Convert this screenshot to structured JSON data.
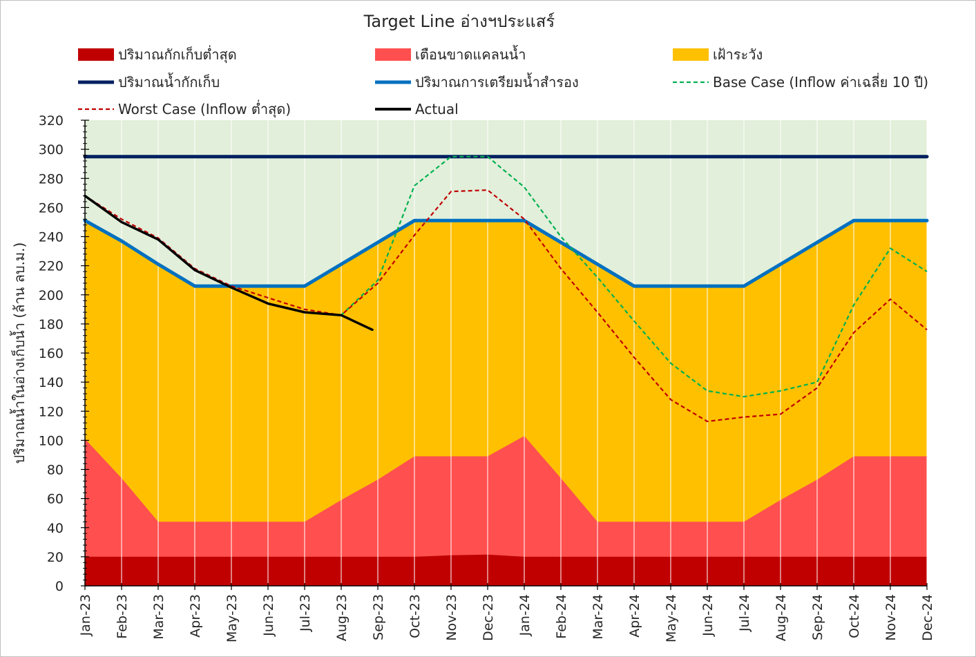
{
  "chart_data": {
    "type": "area",
    "title": "Target Line อ่างฯประแสร์",
    "ylabel": "ปริมาณน้ำในอ่างเก็บน้ำ (ล้าน ลบ.ม.)",
    "xlabel": "",
    "ylim": [
      0,
      320
    ],
    "y_ticks": [
      0,
      20,
      40,
      60,
      80,
      100,
      120,
      140,
      160,
      180,
      200,
      220,
      240,
      260,
      280,
      300,
      320
    ],
    "categories": [
      "Jan-23",
      "Feb-23",
      "Mar-23",
      "Apr-23",
      "May-23",
      "Jun-23",
      "Jul-23",
      "Aug-23",
      "Sep-23",
      "Oct-23",
      "Nov-23",
      "Dec-23",
      "Jan-24",
      "Feb-24",
      "Mar-24",
      "Apr-24",
      "May-24",
      "Jun-24",
      "Jul-24",
      "Aug-24",
      "Sep-24",
      "Oct-24",
      "Nov-24",
      "Dec-24"
    ],
    "grid": true,
    "legend_position": "top",
    "background_zone_color": "#e2efda",
    "series": [
      {
        "name": "ปริมาณกักเก็บต่ำสุด",
        "kind": "area",
        "color": "#c00000",
        "values": [
          20,
          20,
          20,
          20,
          20,
          20,
          20,
          20,
          20,
          20,
          21,
          21.5,
          20,
          20,
          20,
          20,
          20,
          20,
          20,
          20,
          20,
          20,
          20,
          20
        ]
      },
      {
        "name": "เตือนขาดแคลนน้ำ",
        "kind": "area",
        "color": "#ff4f4f",
        "values": [
          101,
          74,
          44,
          44,
          44,
          44,
          44,
          59,
          73,
          89,
          89,
          89,
          103,
          74,
          44,
          44,
          44,
          44,
          44,
          59,
          73,
          89,
          89,
          89
        ]
      },
      {
        "name": "เฝ้าระวัง",
        "kind": "area",
        "color": "#ffc000",
        "values": [
          251,
          237,
          221,
          206,
          206,
          206,
          206,
          221,
          236,
          251,
          251,
          251,
          251,
          236,
          221,
          206,
          206,
          206,
          206,
          221,
          236,
          251,
          251,
          251
        ]
      },
      {
        "name": "ปริมาณน้ำกักเก็บ",
        "kind": "line",
        "color": "#002060",
        "dash": "solid",
        "values": [
          295,
          295,
          295,
          295,
          295,
          295,
          295,
          295,
          295,
          295,
          295,
          295,
          295,
          295,
          295,
          295,
          295,
          295,
          295,
          295,
          295,
          295,
          295,
          295
        ]
      },
      {
        "name": "ปริมาณการเตรียมน้ำสำรอง",
        "kind": "line",
        "color": "#0070c0",
        "dash": "solid",
        "values": [
          251,
          237,
          221,
          206,
          206,
          206,
          206,
          221,
          236,
          251,
          251,
          251,
          251,
          236,
          221,
          206,
          206,
          206,
          206,
          221,
          236,
          251,
          251,
          251
        ]
      },
      {
        "name": "Base Case (Inflow ค่าเฉลี่ย 10 ปี)",
        "kind": "line",
        "color": "#00b050",
        "dash": "dashed",
        "x": [
          "Aug-23",
          "Sep-23",
          "Oct-23",
          "Nov-23",
          "Dec-23",
          "Jan-24",
          "Feb-24",
          "Mar-24",
          "Apr-24",
          "May-24",
          "Jun-24",
          "Jul-24",
          "Aug-24",
          "Sep-24",
          "Oct-24",
          "Nov-24",
          "Dec-24"
        ],
        "values": [
          186,
          210,
          275,
          295,
          295,
          274,
          240,
          212,
          182,
          153,
          134,
          130,
          134,
          140,
          193,
          232,
          216
        ]
      },
      {
        "name": "Worst Case (Inflow ต่ำสุด)",
        "kind": "line",
        "color": "#c00000",
        "dash": "dashed",
        "x": [
          "Jan-23",
          "Feb-23",
          "Mar-23",
          "Apr-23",
          "May-23",
          "Jun-23",
          "Jul-23",
          "Aug-23",
          "Sep-23",
          "Oct-23",
          "Nov-23",
          "Dec-23",
          "Jan-24",
          "Feb-24",
          "Mar-24",
          "Apr-24",
          "May-24",
          "Jun-24",
          "Jul-24",
          "Aug-24",
          "Sep-24",
          "Oct-24",
          "Nov-24",
          "Dec-24"
        ],
        "values": [
          268,
          252,
          239,
          218,
          206,
          198,
          190,
          186,
          208,
          241,
          271,
          272,
          252,
          218,
          188,
          157,
          128,
          113,
          116,
          118,
          136,
          174,
          197,
          176
        ]
      },
      {
        "name": "Actual",
        "kind": "line",
        "color": "#000000",
        "dash": "solid",
        "x": [
          "Jan-23",
          "Feb-23",
          "Mar-23",
          "Apr-23",
          "May-23",
          "Jun-23",
          "Jul-23",
          "Aug-23",
          "Sep-23"
        ],
        "values": [
          268,
          250,
          238,
          217,
          205,
          194,
          188,
          186,
          176
        ],
        "x_end_fraction": 0.85
      }
    ]
  }
}
